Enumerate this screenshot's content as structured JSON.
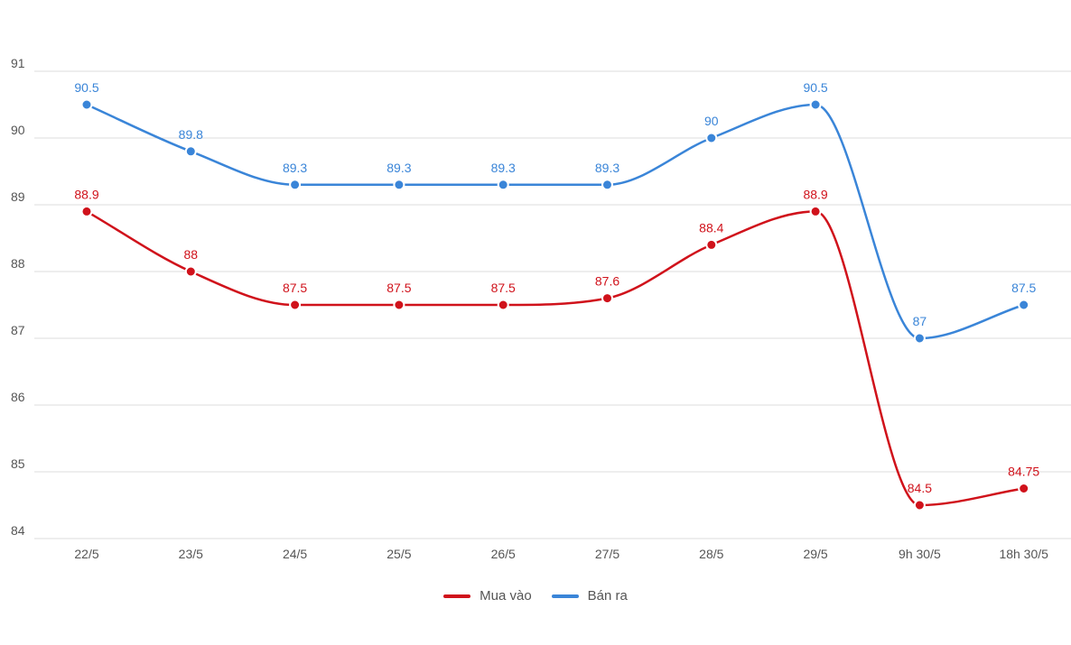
{
  "chart_data": {
    "type": "line",
    "categories": [
      "22/5",
      "23/5",
      "24/5",
      "25/5",
      "26/5",
      "27/5",
      "28/5",
      "29/5",
      "9h 30/5",
      "18h 30/5"
    ],
    "ylim": [
      84,
      91
    ],
    "yticks": [
      "84",
      "85",
      "86",
      "87",
      "88",
      "89",
      "90",
      "91"
    ],
    "grid": true,
    "legend_position": "bottom-center",
    "series": [
      {
        "name": "Mua vào",
        "color": "#d0121b",
        "values": [
          88.9,
          88,
          87.5,
          87.5,
          87.5,
          87.6,
          88.4,
          88.9,
          84.5,
          84.75
        ],
        "labels": [
          "88.9",
          "88",
          "87.5",
          "87.5",
          "87.5",
          "87.6",
          "88.4",
          "88.9",
          "84.5",
          "84.75"
        ]
      },
      {
        "name": "Bán ra",
        "color": "#3a85d8",
        "values": [
          90.5,
          89.8,
          89.3,
          89.3,
          89.3,
          89.3,
          90,
          90.5,
          87,
          87.5
        ],
        "labels": [
          "90.5",
          "89.8",
          "89.3",
          "89.3",
          "89.3",
          "89.3",
          "90",
          "90.5",
          "87",
          "87.5"
        ]
      }
    ]
  }
}
